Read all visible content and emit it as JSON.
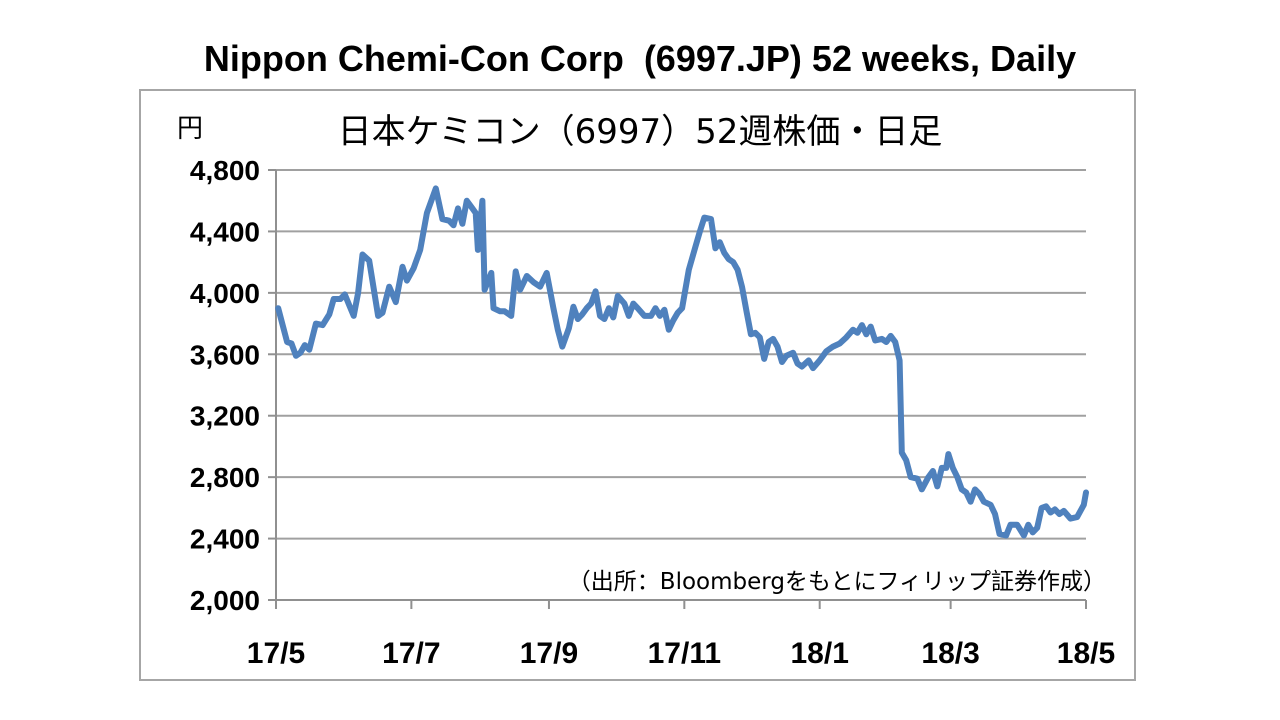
{
  "title": "Nippon Chemi-Con Corp  (6997.JP) 52 weeks, Daily",
  "colors": {
    "line": "#4f81bd",
    "grid": "#a0a0a0",
    "axis": "#909090",
    "frame": "#a6a6a6",
    "text": "#000000"
  },
  "chart_data": {
    "type": "line",
    "title": "日本ケミコン（6997）52週株価・日足",
    "ylabel": "円",
    "xlabel": "",
    "source_note": "（出所：Bloombergをもとにフィリップ証券作成）",
    "ylim": [
      2000,
      4800
    ],
    "yticks": [
      2000,
      2400,
      2800,
      3200,
      3600,
      4000,
      4400,
      4800
    ],
    "ytick_labels": [
      "2,000",
      "2,400",
      "2,800",
      "3,200",
      "3,600",
      "4,000",
      "4,400",
      "4,800"
    ],
    "xlim": [
      "2017-05-01",
      "2018-05-01"
    ],
    "xticks": [
      "2017-05-01",
      "2017-07-01",
      "2017-09-01",
      "2017-11-01",
      "2018-01-01",
      "2018-03-01",
      "2018-05-01"
    ],
    "xtick_labels": [
      "17/5",
      "17/7",
      "17/9",
      "17/11",
      "18/1",
      "18/3",
      "18/5"
    ],
    "grid": true,
    "legend": "none",
    "series": [
      {
        "points": [
          [
            "2017-05-02",
            3900
          ],
          [
            "2017-05-06",
            3680
          ],
          [
            "2017-05-08",
            3670
          ],
          [
            "2017-05-10",
            3590
          ],
          [
            "2017-05-12",
            3610
          ],
          [
            "2017-05-14",
            3660
          ],
          [
            "2017-05-16",
            3630
          ],
          [
            "2017-05-19",
            3800
          ],
          [
            "2017-05-22",
            3790
          ],
          [
            "2017-05-25",
            3860
          ],
          [
            "2017-05-27",
            3960
          ],
          [
            "2017-05-30",
            3960
          ],
          [
            "2017-06-01",
            3990
          ],
          [
            "2017-06-03",
            3920
          ],
          [
            "2017-06-05",
            3850
          ],
          [
            "2017-06-07",
            4000
          ],
          [
            "2017-06-09",
            4250
          ],
          [
            "2017-06-12",
            4210
          ],
          [
            "2017-06-16",
            3850
          ],
          [
            "2017-06-18",
            3870
          ],
          [
            "2017-06-21",
            4040
          ],
          [
            "2017-06-24",
            3940
          ],
          [
            "2017-06-27",
            4170
          ],
          [
            "2017-06-29",
            4080
          ],
          [
            "2017-07-02",
            4160
          ],
          [
            "2017-07-05",
            4280
          ],
          [
            "2017-07-08",
            4520
          ],
          [
            "2017-07-12",
            4680
          ],
          [
            "2017-07-15",
            4480
          ],
          [
            "2017-07-18",
            4470
          ],
          [
            "2017-07-20",
            4440
          ],
          [
            "2017-07-22",
            4550
          ],
          [
            "2017-07-24",
            4450
          ],
          [
            "2017-07-26",
            4600
          ],
          [
            "2017-07-28",
            4560
          ],
          [
            "2017-07-30",
            4520
          ],
          [
            "2017-07-31",
            4280
          ],
          [
            "2017-08-02",
            4600
          ],
          [
            "2017-08-03",
            4020
          ],
          [
            "2017-08-06",
            4130
          ],
          [
            "2017-08-07",
            3900
          ],
          [
            "2017-08-10",
            3880
          ],
          [
            "2017-08-12",
            3880
          ],
          [
            "2017-08-15",
            3850
          ],
          [
            "2017-08-17",
            4140
          ],
          [
            "2017-08-19",
            4020
          ],
          [
            "2017-08-22",
            4110
          ],
          [
            "2017-08-25",
            4070
          ],
          [
            "2017-08-28",
            4040
          ],
          [
            "2017-08-31",
            4130
          ],
          [
            "2017-09-03",
            3900
          ],
          [
            "2017-09-05",
            3760
          ],
          [
            "2017-09-07",
            3650
          ],
          [
            "2017-09-10",
            3770
          ],
          [
            "2017-09-12",
            3910
          ],
          [
            "2017-09-14",
            3830
          ],
          [
            "2017-09-16",
            3860
          ],
          [
            "2017-09-18",
            3900
          ],
          [
            "2017-09-20",
            3930
          ],
          [
            "2017-09-22",
            4010
          ],
          [
            "2017-09-24",
            3850
          ],
          [
            "2017-09-26",
            3830
          ],
          [
            "2017-09-28",
            3900
          ],
          [
            "2017-09-30",
            3840
          ],
          [
            "2017-10-02",
            3980
          ],
          [
            "2017-10-05",
            3930
          ],
          [
            "2017-10-07",
            3850
          ],
          [
            "2017-10-09",
            3930
          ],
          [
            "2017-10-11",
            3900
          ],
          [
            "2017-10-14",
            3850
          ],
          [
            "2017-10-17",
            3850
          ],
          [
            "2017-10-19",
            3900
          ],
          [
            "2017-10-21",
            3850
          ],
          [
            "2017-10-23",
            3890
          ],
          [
            "2017-10-25",
            3760
          ],
          [
            "2017-10-27",
            3820
          ],
          [
            "2017-10-29",
            3870
          ],
          [
            "2017-10-31",
            3900
          ],
          [
            "2017-11-03",
            4150
          ],
          [
            "2017-11-06",
            4300
          ],
          [
            "2017-11-08",
            4400
          ],
          [
            "2017-11-10",
            4490
          ],
          [
            "2017-11-13",
            4480
          ],
          [
            "2017-11-15",
            4290
          ],
          [
            "2017-11-17",
            4330
          ],
          [
            "2017-11-19",
            4260
          ],
          [
            "2017-11-21",
            4220
          ],
          [
            "2017-11-23",
            4200
          ],
          [
            "2017-11-25",
            4150
          ],
          [
            "2017-11-27",
            4040
          ],
          [
            "2017-11-29",
            3880
          ],
          [
            "2017-12-01",
            3730
          ],
          [
            "2017-12-03",
            3740
          ],
          [
            "2017-12-05",
            3710
          ],
          [
            "2017-12-07",
            3570
          ],
          [
            "2017-12-09",
            3680
          ],
          [
            "2017-12-11",
            3700
          ],
          [
            "2017-12-13",
            3650
          ],
          [
            "2017-12-15",
            3550
          ],
          [
            "2017-12-17",
            3590
          ],
          [
            "2017-12-20",
            3610
          ],
          [
            "2017-12-22",
            3540
          ],
          [
            "2017-12-24",
            3520
          ],
          [
            "2017-12-27",
            3560
          ],
          [
            "2017-12-29",
            3510
          ],
          [
            "2018-01-01",
            3560
          ],
          [
            "2018-01-04",
            3620
          ],
          [
            "2018-01-07",
            3650
          ],
          [
            "2018-01-10",
            3670
          ],
          [
            "2018-01-13",
            3710
          ],
          [
            "2018-01-16",
            3760
          ],
          [
            "2018-01-18",
            3740
          ],
          [
            "2018-01-20",
            3790
          ],
          [
            "2018-01-22",
            3730
          ],
          [
            "2018-01-24",
            3780
          ],
          [
            "2018-01-26",
            3690
          ],
          [
            "2018-01-29",
            3700
          ],
          [
            "2018-01-31",
            3680
          ],
          [
            "2018-02-02",
            3720
          ],
          [
            "2018-02-04",
            3680
          ],
          [
            "2018-02-06",
            3560
          ],
          [
            "2018-02-07",
            2960
          ],
          [
            "2018-02-09",
            2910
          ],
          [
            "2018-02-11",
            2800
          ],
          [
            "2018-02-14",
            2790
          ],
          [
            "2018-02-16",
            2720
          ],
          [
            "2018-02-19",
            2800
          ],
          [
            "2018-02-21",
            2840
          ],
          [
            "2018-02-23",
            2740
          ],
          [
            "2018-02-25",
            2860
          ],
          [
            "2018-02-27",
            2860
          ],
          [
            "2018-02-28",
            2950
          ],
          [
            "2018-03-02",
            2860
          ],
          [
            "2018-03-04",
            2800
          ],
          [
            "2018-03-06",
            2720
          ],
          [
            "2018-03-08",
            2700
          ],
          [
            "2018-03-10",
            2640
          ],
          [
            "2018-03-12",
            2720
          ],
          [
            "2018-03-14",
            2690
          ],
          [
            "2018-03-16",
            2640
          ],
          [
            "2018-03-19",
            2620
          ],
          [
            "2018-03-21",
            2560
          ],
          [
            "2018-03-23",
            2430
          ],
          [
            "2018-03-26",
            2420
          ],
          [
            "2018-03-28",
            2490
          ],
          [
            "2018-03-31",
            2490
          ],
          [
            "2018-04-03",
            2420
          ],
          [
            "2018-04-05",
            2490
          ],
          [
            "2018-04-07",
            2440
          ],
          [
            "2018-04-09",
            2470
          ],
          [
            "2018-04-11",
            2600
          ],
          [
            "2018-04-13",
            2610
          ],
          [
            "2018-04-15",
            2570
          ],
          [
            "2018-04-17",
            2590
          ],
          [
            "2018-04-19",
            2560
          ],
          [
            "2018-04-21",
            2580
          ],
          [
            "2018-04-24",
            2530
          ],
          [
            "2018-04-27",
            2540
          ],
          [
            "2018-04-30",
            2620
          ],
          [
            "2018-05-01",
            2700
          ]
        ]
      }
    ]
  }
}
